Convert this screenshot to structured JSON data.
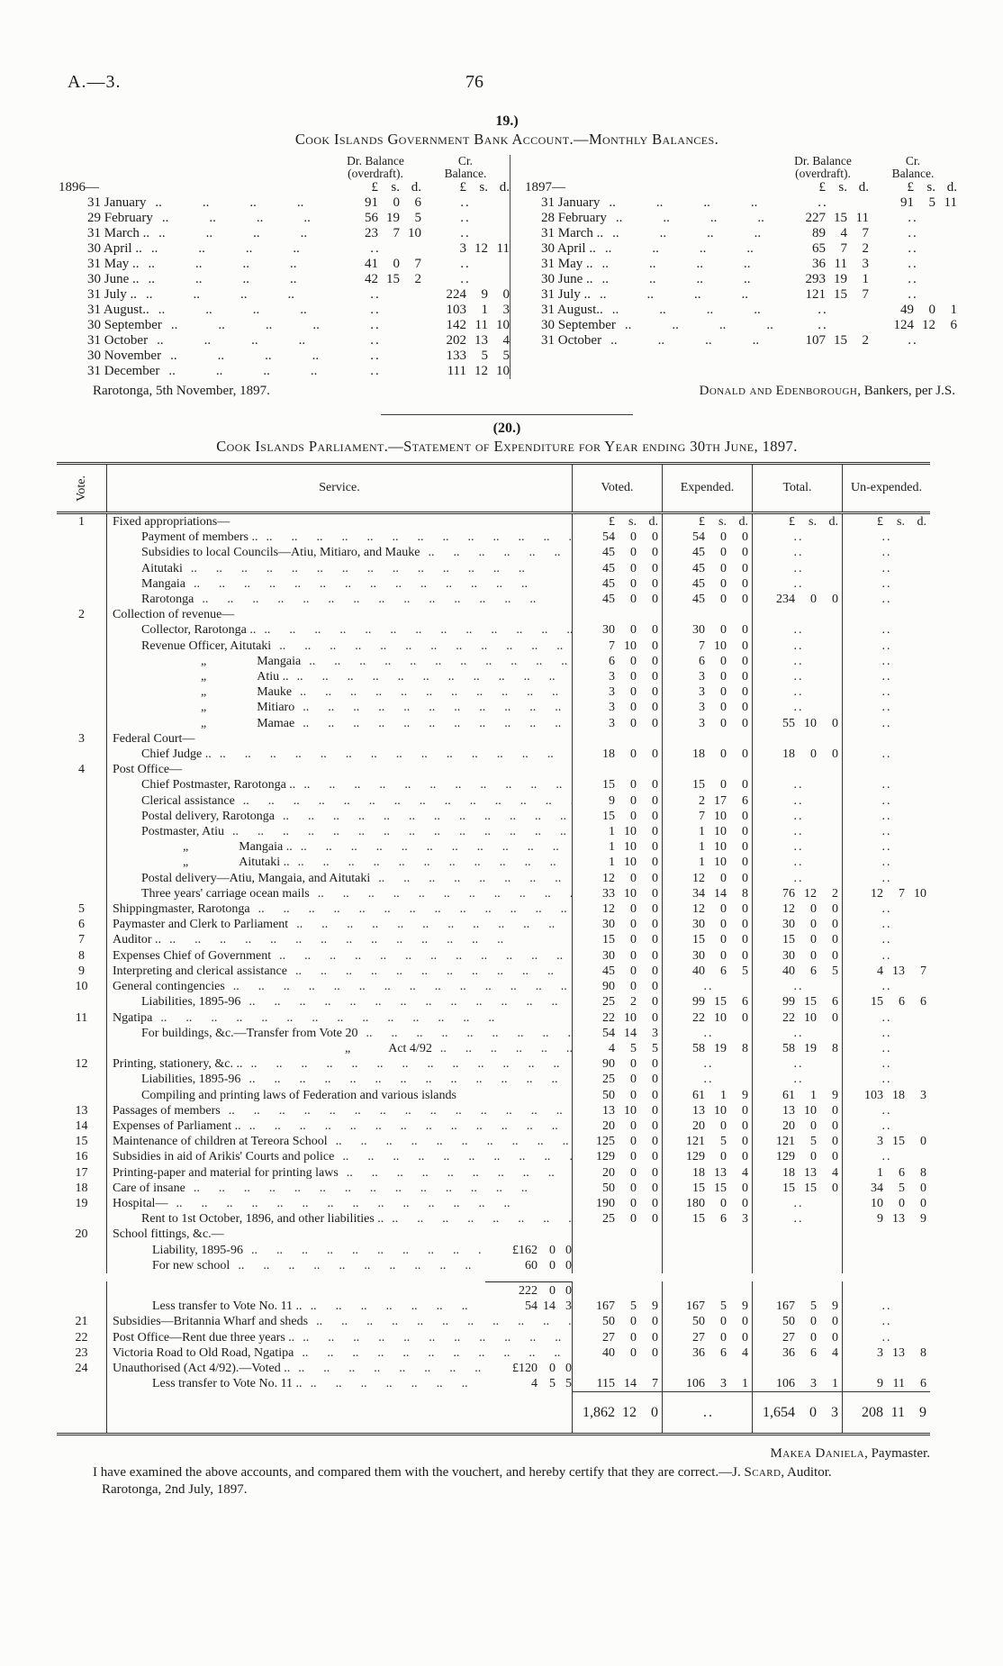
{
  "page": {
    "doc_ref": "A.—3.",
    "page_number": "76"
  },
  "section19": {
    "number": "19.)",
    "title": "Cook Islands Government Bank Account.—Monthly Balances.",
    "units": "£ s. d.",
    "dr_header": [
      "Dr. Balance",
      "(overdraft)."
    ],
    "cr_header": [
      "Cr.",
      "Balance."
    ],
    "left": {
      "year": "1896—",
      "rows": [
        {
          "date": "31 January",
          "dr": "91 0 6",
          "cr": ".."
        },
        {
          "date": "29 February",
          "dr": "56 19 5",
          "cr": ".."
        },
        {
          "date": "31 March ..",
          "dr": "23 7 10",
          "cr": ".."
        },
        {
          "date": "30 April ..",
          "dr": "..",
          "cr": "3 12 11"
        },
        {
          "date": "31 May ..",
          "dr": "41 0 7",
          "cr": ".."
        },
        {
          "date": "30 June ..",
          "dr": "42 15 2",
          "cr": ".."
        },
        {
          "date": "31 July ..",
          "dr": "..",
          "cr": "224 9 0"
        },
        {
          "date": "31 August..",
          "dr": "..",
          "cr": "103 1 3"
        },
        {
          "date": "30 September",
          "dr": "..",
          "cr": "142 11 10"
        },
        {
          "date": "31 October",
          "dr": "..",
          "cr": "202 13 4"
        },
        {
          "date": "30 November",
          "dr": "..",
          "cr": "133 5 5"
        },
        {
          "date": "31 December",
          "dr": "..",
          "cr": "111 12 10"
        }
      ],
      "footer": "Rarotonga, 5th November, 1897."
    },
    "right": {
      "year": "1897—",
      "rows": [
        {
          "date": "31 January",
          "dr": "..",
          "cr": "91 5 11"
        },
        {
          "date": "28 February",
          "dr": "227 15 11",
          "cr": ".."
        },
        {
          "date": "31 March ..",
          "dr": "89 4 7",
          "cr": ".."
        },
        {
          "date": "30 April ..",
          "dr": "65 7 2",
          "cr": ".."
        },
        {
          "date": "31 May ..",
          "dr": "36 11 3",
          "cr": ".."
        },
        {
          "date": "30 June ..",
          "dr": "293 19 1",
          "cr": ".."
        },
        {
          "date": "31 July ..",
          "dr": "121 15 7",
          "cr": ".."
        },
        {
          "date": "31 August..",
          "dr": "..",
          "cr": "49 0 1"
        },
        {
          "date": "30 September",
          "dr": "..",
          "cr": "124 12 6"
        },
        {
          "date": "31 October",
          "dr": "107 15 2",
          "cr": ".."
        }
      ],
      "footer_name": "Donald and Edenborough",
      "footer_rest": ", Bankers, per J.S."
    }
  },
  "section20": {
    "number": "(20.)",
    "title": "Cook Islands Parliament.—Statement of Expenditure for Year ending 30th June, 1897.",
    "units": "£ s. d.",
    "columns": [
      "Vote.",
      "Service.",
      "Voted.",
      "Expended.",
      "Total.",
      "Un-expended."
    ],
    "rows": [
      {
        "v": "1",
        "l": "Fixed appropriations—",
        "ind": 0,
        "mh": true
      },
      {
        "l": "Payment of members ..",
        "ind": 1,
        "lead": true,
        "m": [
          "54 0 0",
          "54 0 0",
          "..",
          ".."
        ]
      },
      {
        "l": "Subsidies to local Councils—Atiu, Mitiaro, and Mauke",
        "ind": 1,
        "lead": true,
        "m": [
          "45 0 0",
          "45 0 0",
          "..",
          ".."
        ]
      },
      {
        "l": "Aitutaki",
        "ind": 1,
        "lead": true,
        "m": [
          "45 0 0",
          "45 0 0",
          "..",
          ".."
        ]
      },
      {
        "l": "Mangaia",
        "ind": 1,
        "lead": true,
        "m": [
          "45 0 0",
          "45 0 0",
          "..",
          ".."
        ]
      },
      {
        "l": "Rarotonga",
        "ind": 1,
        "lead": true,
        "m": [
          "45 0 0",
          "45 0 0",
          "234 0 0",
          ".."
        ]
      },
      {
        "v": "2",
        "l": "Collection of revenue—",
        "ind": 0
      },
      {
        "l": "Collector, Rarotonga ..",
        "ind": 1,
        "lead": true,
        "m": [
          "30 0 0",
          "30 0 0",
          "..",
          ".."
        ]
      },
      {
        "l": "Revenue Officer, Aitutaki",
        "ind": 1,
        "lead": true,
        "m": [
          "7 10 0",
          "7 10 0",
          "..",
          ".."
        ]
      },
      {
        "l": "„    Mangaia",
        "ind": 2,
        "lead": true,
        "m": [
          "6 0 0",
          "6 0 0",
          "..",
          ".."
        ]
      },
      {
        "l": "„    Atiu ..",
        "ind": 2,
        "lead": true,
        "m": [
          "3 0 0",
          "3 0 0",
          "..",
          ".."
        ]
      },
      {
        "l": "„    Mauke",
        "ind": 2,
        "lead": true,
        "m": [
          "3 0 0",
          "3 0 0",
          "..",
          ".."
        ]
      },
      {
        "l": "„    Mitiaro",
        "ind": 2,
        "lead": true,
        "m": [
          "3 0 0",
          "3 0 0",
          "..",
          ".."
        ]
      },
      {
        "l": "„    Mamae",
        "ind": 2,
        "lead": true,
        "m": [
          "3 0 0",
          "3 0 0",
          "55 10 0",
          ".."
        ]
      },
      {
        "v": "3",
        "l": "Federal Court—",
        "ind": 0
      },
      {
        "l": "Chief Judge ..",
        "ind": 1,
        "lead": true,
        "m": [
          "18 0 0",
          "18 0 0",
          "18 0 0",
          ".."
        ]
      },
      {
        "v": "4",
        "l": "Post Office—",
        "ind": 0
      },
      {
        "l": "Chief Postmaster, Rarotonga ..",
        "ind": 1,
        "lead": true,
        "m": [
          "15 0 0",
          "15 0 0",
          "..",
          ".."
        ]
      },
      {
        "l": "Clerical assistance",
        "ind": 1,
        "lead": true,
        "m": [
          "9 0 0",
          "2 17 6",
          "..",
          ".."
        ]
      },
      {
        "l": "Postal delivery, Rarotonga",
        "ind": 1,
        "lead": true,
        "m": [
          "15 0 0",
          "7 10 0",
          "..",
          ".."
        ]
      },
      {
        "l": "Postmaster, Atiu",
        "ind": 1,
        "lead": true,
        "m": [
          "1 10 0",
          "1 10 0",
          "..",
          ".."
        ]
      },
      {
        "l": "„    Mangaia ..",
        "ind": 3,
        "lead": true,
        "m": [
          "1 10 0",
          "1 10 0",
          "..",
          ".."
        ]
      },
      {
        "l": "„    Aitutaki ..",
        "ind": 3,
        "lead": true,
        "m": [
          "1 10 0",
          "1 10 0",
          "..",
          ".."
        ]
      },
      {
        "l": "Postal delivery—Atiu, Mangaia, and Aitutaki",
        "ind": 1,
        "lead": true,
        "m": [
          "12 0 0",
          "12 0 0",
          "..",
          ".."
        ]
      },
      {
        "l": "Three years' carriage ocean mails",
        "ind": 1,
        "lead": true,
        "m": [
          "33 10 0",
          "34 14 8",
          "76 12 2",
          "12 7 10"
        ]
      },
      {
        "v": "5",
        "l": "Shippingmaster, Rarotonga",
        "ind": 0,
        "lead": true,
        "m": [
          "12 0 0",
          "12 0 0",
          "12 0 0",
          ".."
        ]
      },
      {
        "v": "6",
        "l": "Paymaster and Clerk to Parliament",
        "ind": 0,
        "lead": true,
        "m": [
          "30 0 0",
          "30 0 0",
          "30 0 0",
          ".."
        ]
      },
      {
        "v": "7",
        "l": "Auditor ..",
        "ind": 0,
        "lead": true,
        "m": [
          "15 0 0",
          "15 0 0",
          "15 0 0",
          ".."
        ]
      },
      {
        "v": "8",
        "l": "Expenses Chief of Government",
        "ind": 0,
        "lead": true,
        "m": [
          "30 0 0",
          "30 0 0",
          "30 0 0",
          ".."
        ]
      },
      {
        "v": "9",
        "l": "Interpreting and clerical assistance",
        "ind": 0,
        "lead": true,
        "m": [
          "45 0 0",
          "40 6 5",
          "40 6 5",
          "4 13 7"
        ]
      },
      {
        "v": "10",
        "l": "General contingencies",
        "ind": 0,
        "lead": true,
        "m": [
          "90 0 0",
          "..",
          "..",
          ".."
        ]
      },
      {
        "l": "Liabilities, 1895-96",
        "ind": 1,
        "lead": true,
        "m": [
          "25 2 0",
          "99 15 6",
          "99 15 6",
          "15 6 6"
        ]
      },
      {
        "v": "11",
        "l": "Ngatipa",
        "ind": 0,
        "lead": true,
        "m": [
          "22 10 0",
          "22 10 0",
          "22 10 0",
          ".."
        ]
      },
      {
        "l": "For buildings, &c.—Transfer from Vote 20",
        "ind": 1,
        "lead": true,
        "m": [
          "54 14 3",
          "..",
          "..",
          ".."
        ]
      },
      {
        "l": "„   Act 4/92",
        "ind": 4,
        "lead": true,
        "m": [
          "4 5 5",
          "58 19 8",
          "58 19 8",
          ".."
        ]
      },
      {
        "v": "12",
        "l": "Printing, stationery, &c. ..",
        "ind": 0,
        "lead": true,
        "m": [
          "90 0 0",
          "..",
          "..",
          ".."
        ]
      },
      {
        "l": "Liabilities, 1895-96",
        "ind": 1,
        "lead": true,
        "m": [
          "25 0 0",
          "..",
          "..",
          ".."
        ]
      },
      {
        "l": "Compiling and printing laws of Federation and various islands",
        "ind": 1,
        "w": true,
        "m": [
          "50 0 0",
          "61 1 9",
          "61 1 9",
          "103 18 3"
        ]
      },
      {
        "v": "13",
        "l": "Passages of members",
        "ind": 0,
        "lead": true,
        "m": [
          "13 10 0",
          "13 10 0",
          "13 10 0",
          ".."
        ]
      },
      {
        "v": "14",
        "l": "Expenses of Parliament ..",
        "ind": 0,
        "lead": true,
        "m": [
          "20 0 0",
          "20 0 0",
          "20 0 0",
          ".."
        ]
      },
      {
        "v": "15",
        "l": "Maintenance of children at Tereora School",
        "ind": 0,
        "lead": true,
        "m": [
          "125 0 0",
          "121 5 0",
          "121 5 0",
          "3 15 0"
        ]
      },
      {
        "v": "16",
        "l": "Subsidies in aid of Arikis' Courts and police",
        "ind": 0,
        "lead": true,
        "m": [
          "129 0 0",
          "129 0 0",
          "129 0 0",
          ".."
        ]
      },
      {
        "v": "17",
        "l": "Printing-paper and material for printing laws",
        "ind": 0,
        "lead": true,
        "m": [
          "20 0 0",
          "18 13 4",
          "18 13 4",
          "1 6 8"
        ]
      },
      {
        "v": "18",
        "l": "Care of insane",
        "ind": 0,
        "lead": true,
        "m": [
          "50 0 0",
          "15 15 0",
          "15 15 0",
          "34 5 0"
        ]
      },
      {
        "v": "19",
        "l": "Hospital—",
        "ind": 0,
        "lead": true,
        "m": [
          "190 0 0",
          "180 0 0",
          "..",
          "10 0 0"
        ]
      },
      {
        "l": "Rent to 1st October, 1896, and other liabilities ..",
        "ind": 1,
        "lead": true,
        "m": [
          "25 0 0",
          "15 6 3",
          "..",
          "9 13 9"
        ]
      },
      {
        "v": "20",
        "l": "School fittings, &c.—",
        "ind": 0
      },
      {
        "l": "Liability, 1895-96",
        "ind": 5,
        "lead": true,
        "pre": "£162 0 0"
      },
      {
        "l": "For new school",
        "ind": 5,
        "lead": true,
        "pre": "60 0 0"
      },
      {
        "pre": "222 0 0",
        "preRule": true,
        "gap": true
      },
      {
        "l": "Less transfer to Vote No. 11 ..",
        "ind": 5,
        "lead": true,
        "pre": "54 14 3",
        "m": [
          "167 5 9",
          "167 5 9",
          "167 5 9",
          ".."
        ]
      },
      {
        "v": "21",
        "l": "Subsidies—Britannia Wharf and sheds",
        "ind": 0,
        "lead": true,
        "m": [
          "50 0 0",
          "50 0 0",
          "50 0 0",
          ".."
        ]
      },
      {
        "v": "22",
        "l": "Post Office—Rent due three years ..",
        "ind": 0,
        "lead": true,
        "m": [
          "27 0 0",
          "27 0 0",
          "27 0 0",
          ".."
        ]
      },
      {
        "v": "23",
        "l": "Victoria Road to Old Road, Ngatipa",
        "ind": 0,
        "lead": true,
        "m": [
          "40 0 0",
          "36 6 4",
          "36 6 4",
          "3 13 8"
        ]
      },
      {
        "v": "24",
        "l": "Unauthorised (Act 4/92).—Voted ..",
        "ind": 0,
        "lead": true,
        "pre": "£120 0 0"
      },
      {
        "l": "Less transfer to Vote No. 11 ..",
        "ind": 5,
        "lead": true,
        "pre": "4 5 5",
        "m": [
          "115 14 7",
          "106 3 1",
          "106 3 1",
          "9 11 6"
        ]
      }
    ],
    "totals": {
      "voted": "1,862 12 0",
      "expended": "..",
      "total": "1,654 0 3",
      "unexpended": "208 11 9"
    },
    "footer": {
      "paymaster_name": "Makea Daniela",
      "paymaster_rest": ", Paymaster.",
      "certify_pre": "I have examined the above accounts, and compared them with the vouchert, and hereby certify that they are correct.—J. ",
      "certify_name": "Scard",
      "certify_post": ", Auditor.",
      "place_date": "Rarotonga, 2nd July, 1897."
    }
  }
}
